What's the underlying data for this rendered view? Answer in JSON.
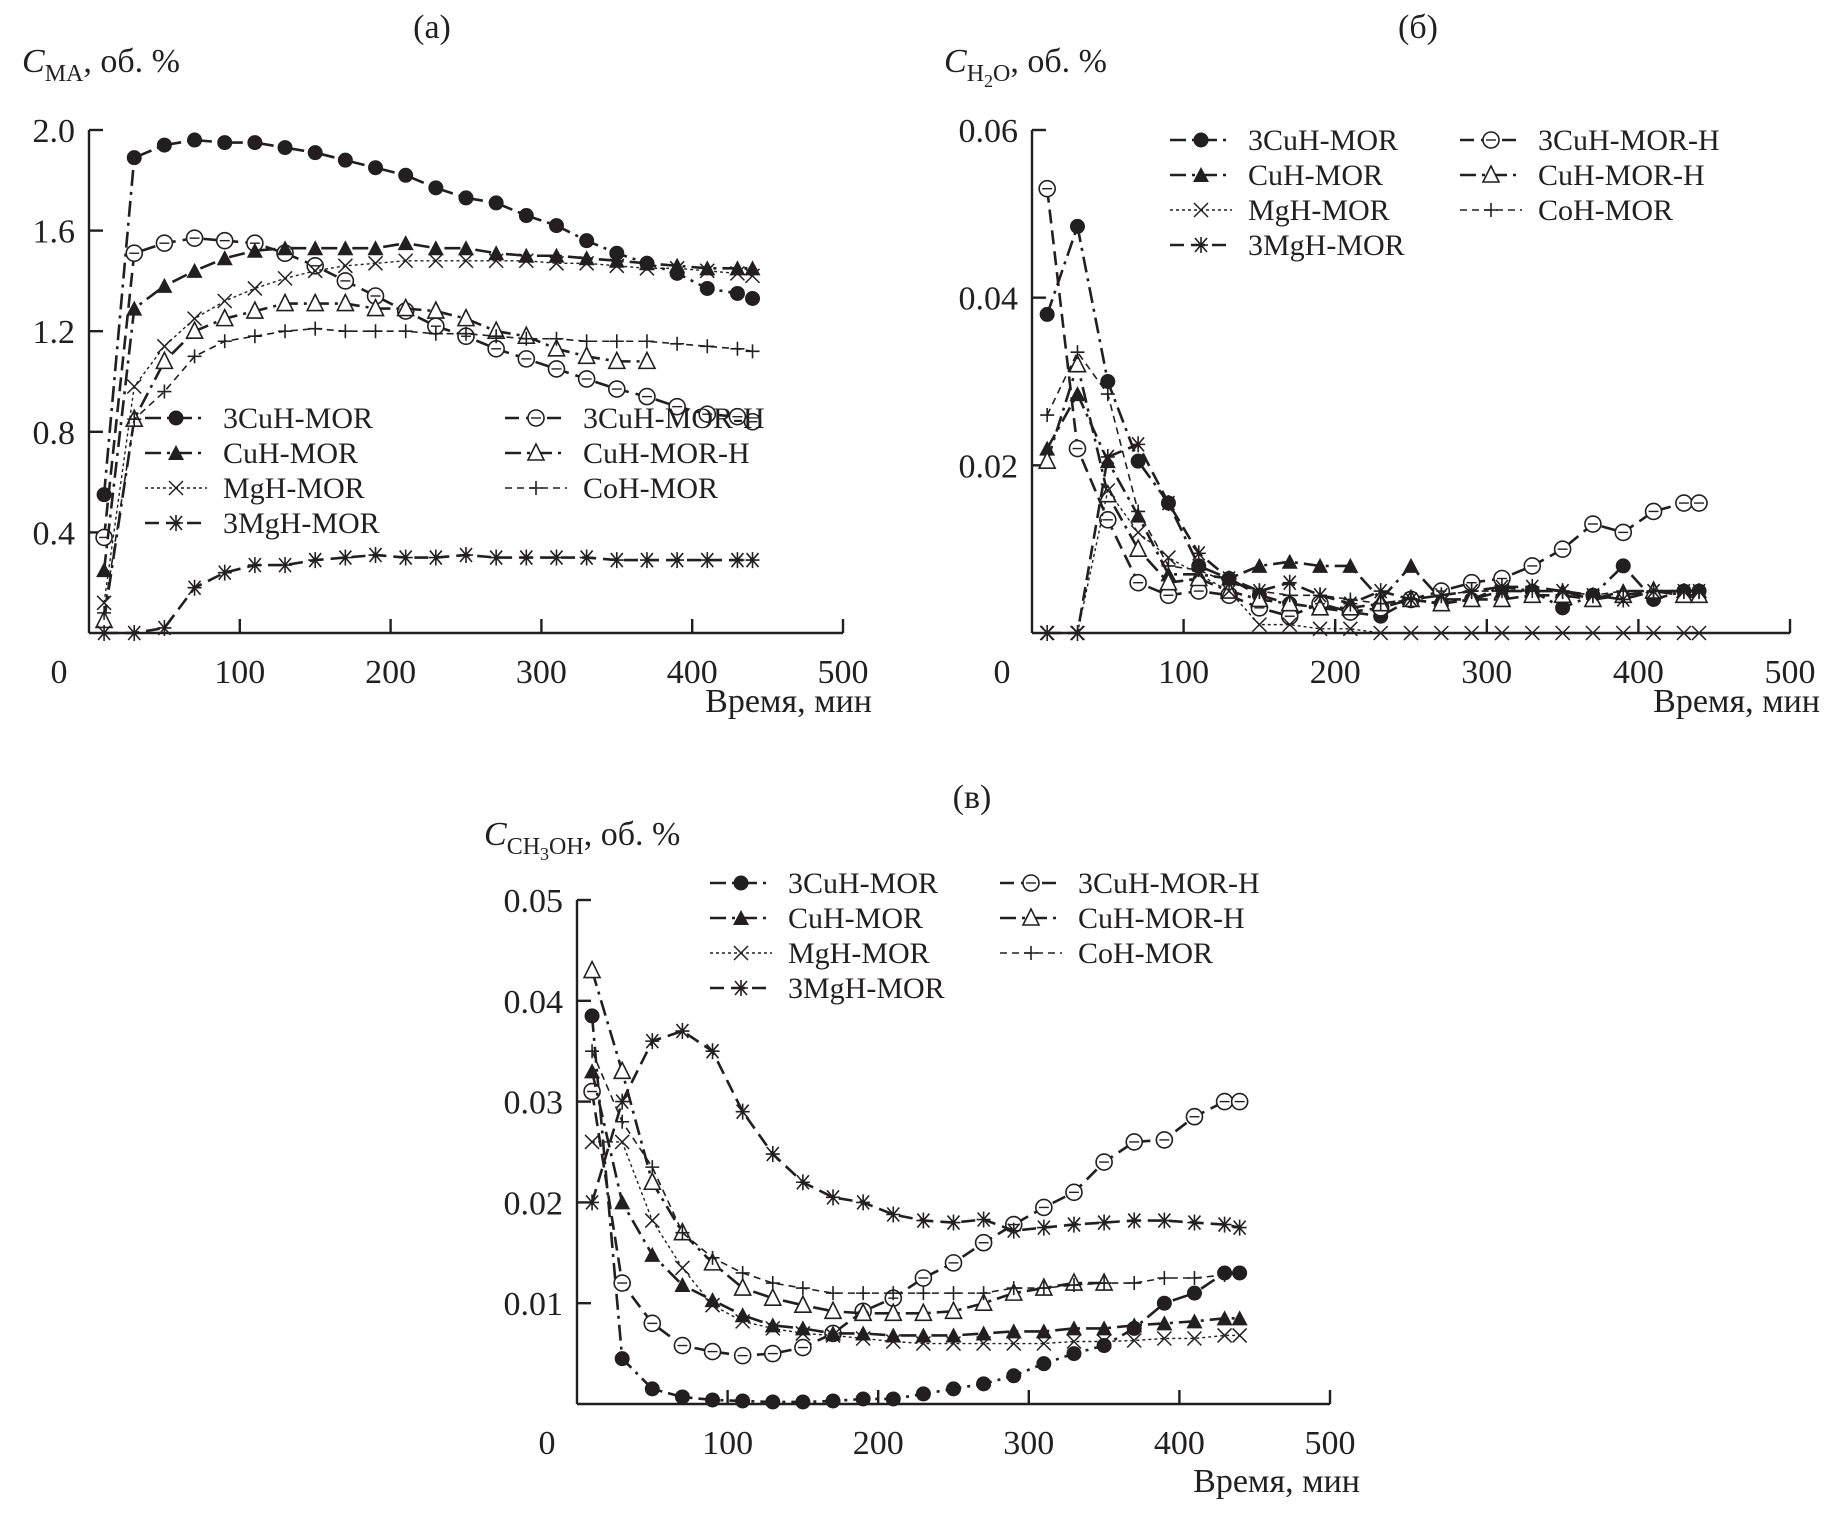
{
  "chart_data": [
    {
      "id": "a",
      "type": "line",
      "panel_label": "(a)",
      "ylabel_main": "C",
      "ylabel_sub": "MA",
      "ylabel_unit": ", об. %",
      "xlabel": "Время, мин",
      "xlim": [
        0,
        500
      ],
      "ylim": [
        0,
        2.0
      ],
      "xticks": [
        "0",
        "100",
        "200",
        "300",
        "400",
        "500"
      ],
      "yticks": [
        "0.4",
        "0.8",
        "1.2",
        "1.6",
        "2.0"
      ],
      "ytick_values": [
        0.4,
        0.8,
        1.2,
        1.6,
        2.0
      ],
      "grid": false,
      "legend_position": "center-left",
      "x": [
        10,
        30,
        50,
        70,
        90,
        110,
        130,
        150,
        170,
        190,
        210,
        230,
        250,
        270,
        290,
        310,
        330,
        350,
        370,
        390,
        410,
        430,
        440
      ],
      "series": [
        {
          "name": "3CuH-MOR",
          "marker": "filled-circle",
          "dash": "dashdot",
          "values": [
            0.55,
            1.89,
            1.94,
            1.96,
            1.95,
            1.95,
            1.93,
            1.91,
            1.88,
            1.85,
            1.82,
            1.77,
            1.73,
            1.71,
            1.66,
            1.62,
            1.56,
            1.51,
            1.47,
            1.43,
            1.37,
            1.35,
            1.33
          ]
        },
        {
          "name": "3CuH-MOR-H",
          "marker": "open-circle",
          "dash": "dash",
          "values": [
            0.38,
            1.51,
            1.55,
            1.57,
            1.56,
            1.55,
            1.51,
            1.46,
            1.4,
            1.34,
            1.28,
            1.22,
            1.18,
            1.13,
            1.09,
            1.05,
            1.01,
            0.97,
            0.94,
            0.9,
            0.87,
            0.86,
            0.84
          ]
        },
        {
          "name": "CuH-MOR",
          "marker": "filled-triangle",
          "dash": "dashdot",
          "values": [
            0.25,
            1.29,
            1.38,
            1.44,
            1.49,
            1.52,
            1.53,
            1.53,
            1.53,
            1.53,
            1.55,
            1.53,
            1.53,
            1.51,
            1.5,
            1.5,
            1.49,
            1.48,
            1.47,
            1.46,
            1.45,
            1.45,
            1.45
          ]
        },
        {
          "name": "CuH-MOR-H",
          "marker": "open-triangle",
          "dash": "dashdot",
          "values": [
            0.05,
            0.85,
            1.08,
            1.2,
            1.25,
            1.28,
            1.31,
            1.31,
            1.31,
            1.29,
            1.29,
            1.28,
            1.25,
            1.2,
            1.18,
            1.13,
            1.1,
            1.08,
            1.08,
            null,
            null,
            null,
            null
          ]
        },
        {
          "name": "MgH-MOR",
          "marker": "x",
          "dash": "dot",
          "values": [
            0.12,
            0.98,
            1.14,
            1.25,
            1.32,
            1.37,
            1.41,
            1.44,
            1.46,
            1.47,
            1.48,
            1.48,
            1.48,
            1.48,
            1.48,
            1.47,
            1.47,
            1.46,
            1.45,
            1.45,
            1.44,
            1.43,
            1.42
          ]
        },
        {
          "name": "CoH-MOR",
          "marker": "plus",
          "dash": "dash-fine",
          "values": [
            0.08,
            0.85,
            0.96,
            1.1,
            1.16,
            1.18,
            1.2,
            1.21,
            1.2,
            1.2,
            1.2,
            1.19,
            1.19,
            1.18,
            1.17,
            1.17,
            1.16,
            1.16,
            1.16,
            1.15,
            1.14,
            1.13,
            1.12
          ]
        },
        {
          "name": "3MgH-MOR",
          "marker": "asterisk",
          "dash": "dash",
          "values": [
            0.0,
            0.0,
            0.02,
            0.18,
            0.24,
            0.27,
            0.27,
            0.29,
            0.3,
            0.31,
            0.3,
            0.3,
            0.31,
            0.3,
            0.3,
            0.3,
            0.3,
            0.29,
            0.29,
            0.29,
            0.29,
            0.29,
            0.29
          ]
        }
      ]
    },
    {
      "id": "b",
      "type": "line",
      "panel_label": "(б)",
      "ylabel_main": "C",
      "ylabel_sub": "H",
      "ylabel_sub2": "2",
      "ylabel_sub3": "O",
      "ylabel_unit": ", об. %",
      "xlabel": "Время, мин",
      "xlim": [
        0,
        500
      ],
      "ylim": [
        0,
        0.06
      ],
      "xticks": [
        "0",
        "100",
        "200",
        "300",
        "400",
        "500"
      ],
      "yticks": [
        "0.02",
        "0.04",
        "0.06"
      ],
      "ytick_values": [
        0.02,
        0.04,
        0.06
      ],
      "grid": false,
      "legend_position": "top-right",
      "x": [
        10,
        30,
        50,
        70,
        90,
        110,
        130,
        150,
        170,
        190,
        210,
        230,
        250,
        270,
        290,
        310,
        330,
        350,
        370,
        390,
        410,
        430,
        440
      ],
      "series": [
        {
          "name": "3CuH-MOR",
          "marker": "filled-circle",
          "dash": "dashdot",
          "values": [
            0.038,
            0.0485,
            0.03,
            0.0205,
            0.0155,
            0.008,
            0.0065,
            0.0045,
            0.0035,
            0.003,
            0.0025,
            0.002,
            0.004,
            0.0035,
            0.004,
            0.0055,
            0.005,
            0.003,
            0.0045,
            0.008,
            0.004,
            0.005,
            0.005
          ]
        },
        {
          "name": "3CuH-MOR-H",
          "marker": "open-circle",
          "dash": "dash",
          "values": [
            0.053,
            0.022,
            0.0135,
            0.006,
            0.0045,
            0.005,
            0.0045,
            0.003,
            0.002,
            0.0035,
            0.0025,
            0.003,
            0.004,
            0.005,
            0.006,
            0.0065,
            0.008,
            0.01,
            0.013,
            0.012,
            0.0145,
            0.0155,
            0.0155
          ]
        },
        {
          "name": "CuH-MOR",
          "marker": "filled-triangle",
          "dash": "dashdot",
          "values": [
            0.022,
            0.0285,
            0.0205,
            0.014,
            0.007,
            0.007,
            0.0065,
            0.008,
            0.0085,
            0.008,
            0.008,
            0.004,
            0.008,
            0.004,
            0.004,
            0.005,
            0.005,
            0.005,
            0.004,
            0.005,
            0.005,
            0.005,
            0.005
          ]
        },
        {
          "name": "CuH-MOR-H",
          "marker": "open-triangle",
          "dash": "dashdot",
          "values": [
            0.0205,
            0.032,
            0.0165,
            0.01,
            0.006,
            0.0065,
            0.005,
            0.004,
            0.0035,
            0.003,
            0.003,
            0.0035,
            0.004,
            0.0035,
            0.004,
            0.004,
            0.0045,
            0.0045,
            0.004,
            0.0045,
            0.005,
            0.0045,
            0.0045
          ]
        },
        {
          "name": "MgH-MOR",
          "marker": "x",
          "dash": "dot",
          "values": [
            0.0,
            0.0,
            0.017,
            0.012,
            0.009,
            0.007,
            0.005,
            0.001,
            0.001,
            0.0005,
            0.0005,
            0.0,
            0.0,
            0.0,
            0.0,
            0.0,
            0.0,
            0.0,
            0.0,
            0.0,
            0.0,
            0.0,
            0.0
          ]
        },
        {
          "name": "CoH-MOR",
          "marker": "plus",
          "dash": "dash-fine",
          "values": [
            0.026,
            0.0335,
            0.0285,
            0.0145,
            0.008,
            0.0075,
            0.006,
            0.005,
            0.0045,
            0.0045,
            0.004,
            0.0035,
            0.004,
            0.0045,
            0.005,
            0.005,
            0.005,
            0.005,
            0.0045,
            0.005,
            0.005,
            0.005,
            0.005
          ]
        },
        {
          "name": "3MgH-MOR",
          "marker": "asterisk",
          "dash": "dash",
          "values": [
            0.0,
            0.0,
            0.021,
            0.0225,
            0.0155,
            0.0095,
            0.0065,
            0.005,
            0.006,
            0.0045,
            0.0035,
            0.005,
            0.004,
            0.0045,
            0.005,
            0.0055,
            0.0055,
            0.005,
            0.0045,
            0.004,
            0.005,
            0.005,
            0.005
          ]
        }
      ]
    },
    {
      "id": "c",
      "type": "line",
      "panel_label": "(в)",
      "ylabel_main": "C",
      "ylabel_sub": "CH",
      "ylabel_sub2": "3",
      "ylabel_sub3": "OH",
      "ylabel_unit": ", об. %",
      "xlabel": "Время, мин",
      "xlim": [
        0,
        500
      ],
      "ylim": [
        0,
        0.05
      ],
      "xticks": [
        "0",
        "100",
        "200",
        "300",
        "400",
        "500"
      ],
      "yticks": [
        "0.01",
        "0.02",
        "0.03",
        "0.04",
        "0.05"
      ],
      "ytick_values": [
        0.01,
        0.02,
        0.03,
        0.04,
        0.05
      ],
      "grid": false,
      "legend_position": "top-right",
      "x": [
        10,
        30,
        50,
        70,
        90,
        110,
        130,
        150,
        170,
        190,
        210,
        230,
        250,
        270,
        290,
        310,
        330,
        350,
        370,
        390,
        410,
        430,
        440
      ],
      "series": [
        {
          "name": "3CuH-MOR",
          "marker": "filled-circle",
          "dash": "dashdot",
          "values": [
            0.0385,
            0.0045,
            0.0015,
            0.0007,
            0.0004,
            0.0003,
            0.0002,
            0.0002,
            0.0003,
            0.0005,
            0.0005,
            0.001,
            0.0015,
            0.002,
            0.0028,
            0.004,
            0.005,
            0.0058,
            0.0075,
            0.01,
            0.011,
            0.013,
            0.013
          ]
        },
        {
          "name": "3CuH-MOR-H",
          "marker": "open-circle",
          "dash": "dash",
          "values": [
            0.031,
            0.012,
            0.008,
            0.0058,
            0.0052,
            0.0048,
            0.005,
            0.0056,
            0.007,
            0.0092,
            0.0105,
            0.0125,
            0.014,
            0.016,
            0.0178,
            0.0195,
            0.021,
            0.024,
            0.026,
            0.0262,
            0.0285,
            0.03,
            0.03
          ]
        },
        {
          "name": "CuH-MOR",
          "marker": "filled-triangle",
          "dash": "dashdot",
          "values": [
            0.033,
            0.02,
            0.0148,
            0.0118,
            0.0103,
            0.0088,
            0.0078,
            0.0075,
            0.007,
            0.007,
            0.0068,
            0.0068,
            0.0068,
            0.007,
            0.0072,
            0.0072,
            0.0075,
            0.0075,
            0.0078,
            0.008,
            0.0082,
            0.0085,
            0.0085
          ]
        },
        {
          "name": "CuH-MOR-H",
          "marker": "open-triangle",
          "dash": "dashdot",
          "values": [
            0.043,
            0.033,
            0.022,
            0.017,
            0.014,
            0.0115,
            0.0105,
            0.0098,
            0.0092,
            0.009,
            0.009,
            0.009,
            0.0092,
            0.01,
            0.011,
            0.0115,
            0.012,
            0.012,
            null,
            null,
            null,
            null,
            null
          ]
        },
        {
          "name": "MgH-MOR",
          "marker": "x",
          "dash": "dot",
          "values": [
            0.026,
            0.026,
            0.0182,
            0.0135,
            0.0098,
            0.0082,
            0.0075,
            0.007,
            0.0068,
            0.0065,
            0.0062,
            0.006,
            0.006,
            0.006,
            0.006,
            0.006,
            0.0062,
            0.0062,
            0.0063,
            0.0065,
            0.0065,
            0.0068,
            0.0068
          ]
        },
        {
          "name": "CoH-MOR",
          "marker": "plus",
          "dash": "dash-fine",
          "values": [
            0.035,
            0.028,
            0.0235,
            0.017,
            0.0145,
            0.013,
            0.012,
            0.0115,
            0.011,
            0.011,
            0.011,
            0.011,
            0.011,
            0.011,
            0.0115,
            0.0115,
            0.0118,
            0.012,
            0.012,
            0.0125,
            0.0125,
            0.0128,
            0.013
          ]
        },
        {
          "name": "3MgH-MOR",
          "marker": "asterisk",
          "dash": "dash",
          "values": [
            0.02,
            0.03,
            0.036,
            0.037,
            0.035,
            0.029,
            0.0248,
            0.022,
            0.0205,
            0.02,
            0.0188,
            0.0182,
            0.018,
            0.0183,
            0.0172,
            0.0175,
            0.0178,
            0.018,
            0.0182,
            0.0182,
            0.018,
            0.0178,
            0.0175
          ]
        }
      ]
    }
  ]
}
